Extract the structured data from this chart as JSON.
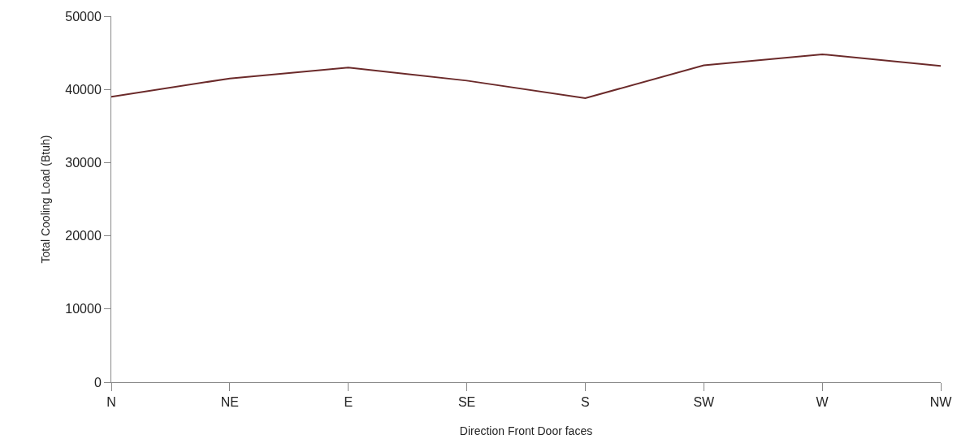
{
  "chart_data": {
    "type": "line",
    "xlabel": "Direction Front Door faces",
    "ylabel": "Total Cooling Load (Btuh)",
    "categories": [
      "N",
      "NE",
      "E",
      "SE",
      "S",
      "SW",
      "W",
      "NW"
    ],
    "series": [
      {
        "color": "#6b2a2a",
        "values": [
          39000,
          41500,
          43000,
          41200,
          38800,
          43300,
          44800,
          43200
        ]
      }
    ],
    "ylim": [
      0,
      50000
    ],
    "yticks": [
      0,
      10000,
      20000,
      30000,
      40000,
      50000
    ],
    "grid": false,
    "marker": "none",
    "line_style": "solid"
  }
}
